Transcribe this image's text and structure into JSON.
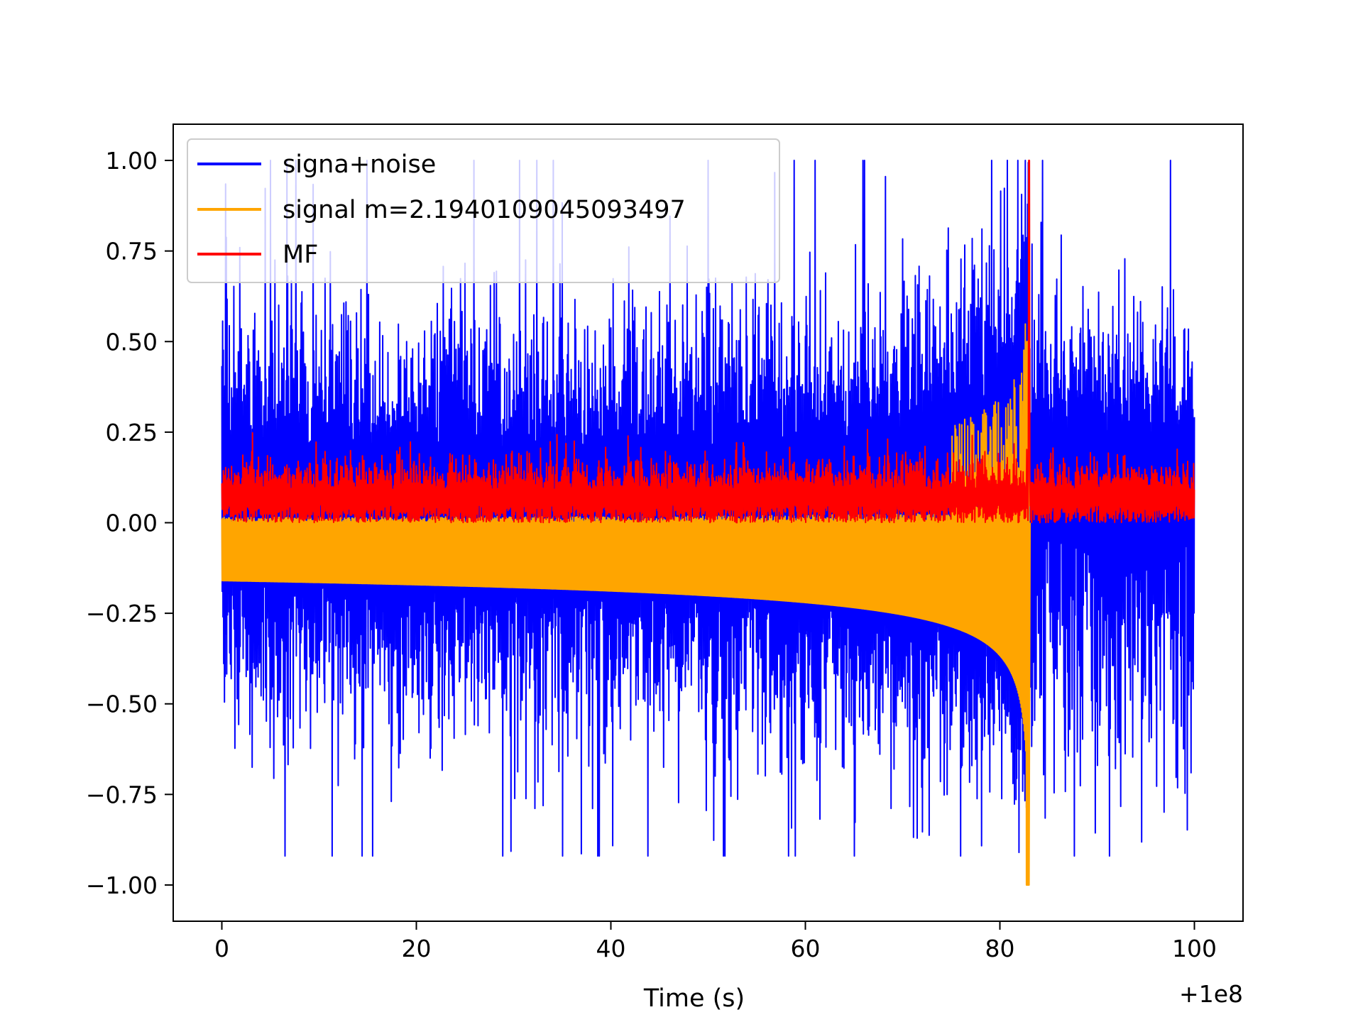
{
  "chart_data": {
    "type": "line",
    "title": "",
    "xlabel": "Time (s)",
    "ylabel": "",
    "x_offset_label": "+1e8",
    "xlim": [
      -5,
      105
    ],
    "ylim": [
      -1.1,
      1.1
    ],
    "xticks": [
      0,
      20,
      40,
      60,
      80,
      100
    ],
    "xtick_labels": [
      "0",
      "20",
      "40",
      "60",
      "80",
      "100"
    ],
    "yticks": [
      1.0,
      0.75,
      0.5,
      0.25,
      0.0,
      -0.25,
      -0.5,
      -0.75,
      -1.0
    ],
    "ytick_labels": [
      "1.00",
      "0.75",
      "0.50",
      "0.25",
      "0.00",
      "−0.25",
      "−0.50",
      "−0.75",
      "−1.00"
    ],
    "grid": false,
    "legend_position": "upper-left",
    "signal_merger_time": 83,
    "series": [
      {
        "name": "signa+noise",
        "color": "#0000ff",
        "x_range": [
          0,
          100
        ],
        "description_values": {
          "typical_upper": 0.55,
          "typical_lower": -0.5,
          "max": 1.0,
          "min": -0.92
        }
      },
      {
        "name": "signal m=2.1940109045093497",
        "color": "#ffa500",
        "x_range": [
          0,
          83
        ],
        "description_values": {
          "upper_start": 0.16,
          "lower_start": -0.16,
          "peak_max": 0.5,
          "peak_min": -1.0
        }
      },
      {
        "name": "MF",
        "color": "#ff0000",
        "x_range": [
          0,
          100
        ],
        "description_values": {
          "typical_upper": 0.22,
          "typical_lower": 0.0,
          "peak": 1.0,
          "peak_x": 83
        }
      }
    ]
  }
}
